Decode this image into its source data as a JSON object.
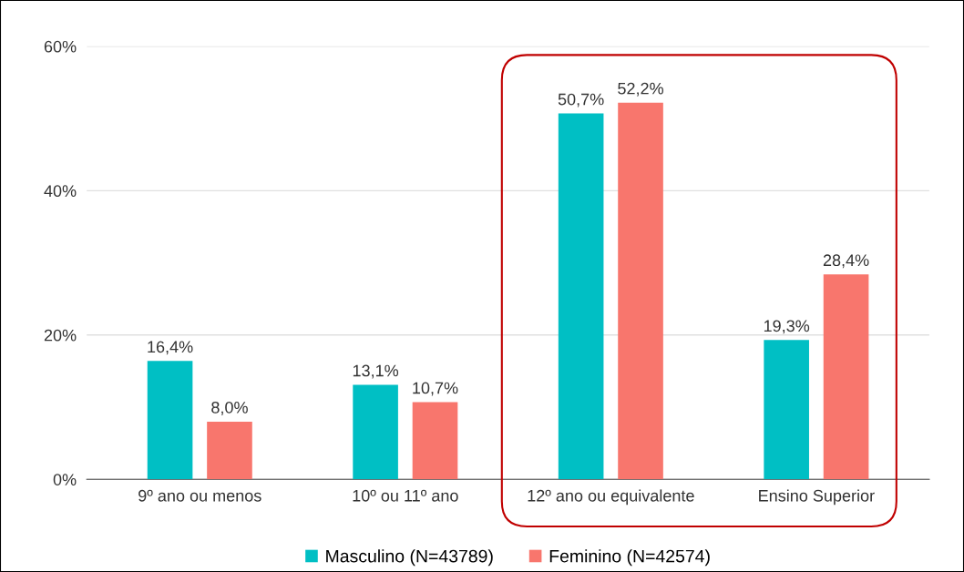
{
  "chart_data": {
    "type": "bar",
    "categories": [
      "9º ano ou menos",
      "10º ou 11º ano",
      "12º ano ou equivalente",
      "Ensino Superior"
    ],
    "series": [
      {
        "name": "Masculino (N=43789)",
        "color": "#00bfc4",
        "values": [
          16.4,
          13.1,
          50.7,
          19.3
        ],
        "value_labels": [
          "16,4%",
          "13,1%",
          "50,7%",
          "19,3%"
        ]
      },
      {
        "name": "Feminino (N=42574)",
        "color": "#f8766d",
        "values": [
          8.0,
          10.7,
          52.2,
          28.4
        ],
        "value_labels": [
          "8,0%",
          "10,7%",
          "52,2%",
          "28,4%"
        ]
      }
    ],
    "ylim": [
      0,
      60
    ],
    "yticks": [
      {
        "value": 0,
        "label": "0%"
      },
      {
        "value": 20,
        "label": "20%"
      },
      {
        "value": 40,
        "label": "40%"
      },
      {
        "value": 60,
        "label": "60%"
      }
    ],
    "grid": "y",
    "legend": "bottom"
  }
}
